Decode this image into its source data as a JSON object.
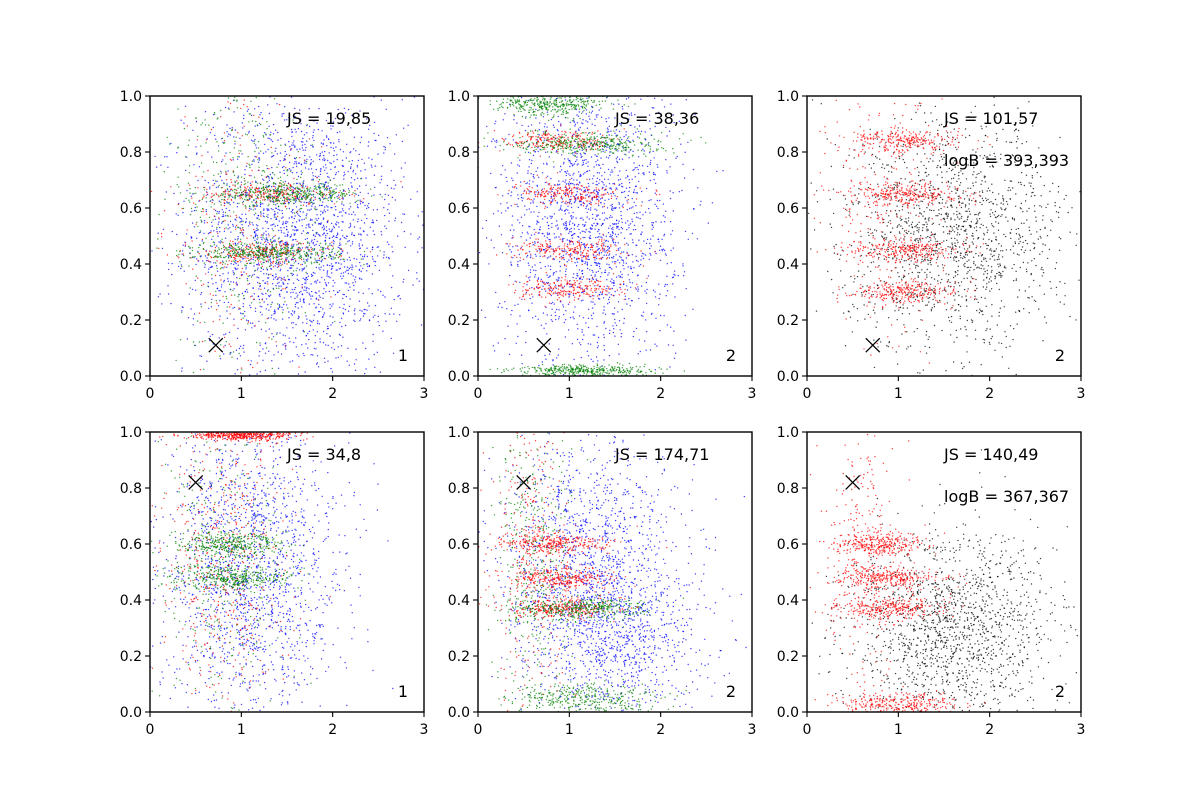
{
  "figure": {
    "layout": "2x3 grid of scatter panels",
    "colors": {
      "blue": "#0000ff",
      "green": "#008000",
      "red": "#ff0000",
      "black": "#000000"
    }
  },
  "chart_data": [
    {
      "type": "scatter",
      "xlim": [
        0,
        3
      ],
      "ylim": [
        0,
        1
      ],
      "xticks": [
        "0",
        "1",
        "2",
        "3"
      ],
      "yticks": [
        "0.0",
        "0.2",
        "0.4",
        "0.6",
        "0.8",
        "1.0"
      ],
      "annotations": [
        "JS = 19,85"
      ],
      "corner_label": "1",
      "marker": {
        "x": 0.72,
        "y": 0.11
      },
      "series": [
        {
          "name": "blue",
          "color": "#0000ff",
          "count": 2200,
          "x_spread": [
            0.1,
            3.0
          ],
          "clusters": [
            {
              "y": 0.5,
              "x_center": 1.6,
              "x_sd": 0.6,
              "y_sd": 0.25
            }
          ]
        },
        {
          "name": "red",
          "color": "#ff0000",
          "count": 700,
          "clusters": [
            {
              "y": 0.65,
              "x_center": 1.3,
              "x_sd": 0.4,
              "y_sd": 0.02
            },
            {
              "y": 0.44,
              "x_center": 1.2,
              "x_sd": 0.4,
              "y_sd": 0.02
            },
            {
              "y": 0.5,
              "x_center": 1.0,
              "x_sd": 0.4,
              "y_sd": 0.3
            }
          ]
        },
        {
          "name": "green",
          "color": "#008000",
          "count": 1200,
          "clusters": [
            {
              "y": 0.65,
              "x_center": 1.5,
              "x_sd": 0.4,
              "y_sd": 0.02
            },
            {
              "y": 0.44,
              "x_center": 1.3,
              "x_sd": 0.4,
              "y_sd": 0.02
            },
            {
              "y": 0.6,
              "x_center": 1.0,
              "x_sd": 0.4,
              "y_sd": 0.3
            }
          ]
        }
      ]
    },
    {
      "type": "scatter",
      "xlim": [
        0,
        3
      ],
      "ylim": [
        0,
        1
      ],
      "xticks": [
        "0",
        "1",
        "2",
        "3"
      ],
      "yticks": [
        "0.0",
        "0.2",
        "0.4",
        "0.6",
        "0.8",
        "1.0"
      ],
      "annotations": [
        "JS = 38,36"
      ],
      "corner_label": "2",
      "marker": {
        "x": 0.72,
        "y": 0.11
      },
      "series": [
        {
          "name": "blue",
          "color": "#0000ff",
          "count": 1800,
          "clusters": [
            {
              "y": 0.55,
              "x_center": 1.2,
              "x_sd": 0.5,
              "y_sd": 0.25
            }
          ]
        },
        {
          "name": "red",
          "color": "#ff0000",
          "count": 900,
          "clusters": [
            {
              "y": 0.84,
              "x_center": 0.9,
              "x_sd": 0.3,
              "y_sd": 0.02
            },
            {
              "y": 0.65,
              "x_center": 1.0,
              "x_sd": 0.3,
              "y_sd": 0.02
            },
            {
              "y": 0.45,
              "x_center": 1.0,
              "x_sd": 0.3,
              "y_sd": 0.02
            },
            {
              "y": 0.31,
              "x_center": 1.0,
              "x_sd": 0.3,
              "y_sd": 0.02
            }
          ]
        },
        {
          "name": "green",
          "color": "#008000",
          "count": 1100,
          "clusters": [
            {
              "y": 0.83,
              "x_center": 1.2,
              "x_sd": 0.4,
              "y_sd": 0.02
            },
            {
              "y": 0.02,
              "x_center": 1.2,
              "x_sd": 0.4,
              "y_sd": 0.01
            },
            {
              "y": 0.97,
              "x_center": 0.8,
              "x_sd": 0.3,
              "y_sd": 0.02
            }
          ]
        }
      ]
    },
    {
      "type": "scatter",
      "xlim": [
        0,
        3
      ],
      "ylim": [
        0,
        1
      ],
      "xticks": [
        "0",
        "1",
        "2",
        "3"
      ],
      "yticks": [
        "0.0",
        "0.2",
        "0.4",
        "0.6",
        "0.8",
        "1.0"
      ],
      "annotations": [
        "JS = 101,57",
        "logB = 393,393"
      ],
      "corner_label": "2",
      "marker": {
        "x": 0.72,
        "y": 0.11
      },
      "series": [
        {
          "name": "black",
          "color": "#000000",
          "count": 1500,
          "clusters": [
            {
              "y": 0.5,
              "x_center": 1.6,
              "x_sd": 0.6,
              "y_sd": 0.2
            }
          ]
        },
        {
          "name": "red",
          "color": "#ff0000",
          "count": 1300,
          "clusters": [
            {
              "y": 0.84,
              "x_center": 1.1,
              "x_sd": 0.3,
              "y_sd": 0.02
            },
            {
              "y": 0.65,
              "x_center": 1.1,
              "x_sd": 0.3,
              "y_sd": 0.02
            },
            {
              "y": 0.45,
              "x_center": 1.1,
              "x_sd": 0.3,
              "y_sd": 0.02
            },
            {
              "y": 0.3,
              "x_center": 1.1,
              "x_sd": 0.3,
              "y_sd": 0.02
            },
            {
              "y": 0.6,
              "x_center": 0.8,
              "x_sd": 0.3,
              "y_sd": 0.25
            }
          ]
        }
      ]
    },
    {
      "type": "scatter",
      "xlim": [
        0,
        3
      ],
      "ylim": [
        0,
        1
      ],
      "xticks": [
        "0",
        "1",
        "2",
        "3"
      ],
      "yticks": [
        "0.0",
        "0.2",
        "0.4",
        "0.6",
        "0.8",
        "1.0"
      ],
      "annotations": [
        "JS = 34,8"
      ],
      "corner_label": "1",
      "marker": {
        "x": 0.5,
        "y": 0.82
      },
      "series": [
        {
          "name": "blue",
          "color": "#0000ff",
          "count": 1700,
          "clusters": [
            {
              "y": 0.5,
              "x_center": 1.1,
              "x_sd": 0.5,
              "y_sd": 0.28
            }
          ]
        },
        {
          "name": "red",
          "color": "#ff0000",
          "count": 1000,
          "clusters": [
            {
              "y": 0.5,
              "x_center": 0.8,
              "x_sd": 0.35,
              "y_sd": 0.28
            },
            {
              "y": 0.99,
              "x_center": 1.0,
              "x_sd": 0.3,
              "y_sd": 0.01
            }
          ]
        },
        {
          "name": "green",
          "color": "#008000",
          "count": 1000,
          "clusters": [
            {
              "y": 0.5,
              "x_center": 0.8,
              "x_sd": 0.35,
              "y_sd": 0.28
            },
            {
              "y": 0.6,
              "x_center": 0.9,
              "x_sd": 0.3,
              "y_sd": 0.02
            },
            {
              "y": 0.48,
              "x_center": 0.9,
              "x_sd": 0.3,
              "y_sd": 0.02
            }
          ]
        }
      ]
    },
    {
      "type": "scatter",
      "xlim": [
        0,
        3
      ],
      "ylim": [
        0,
        1
      ],
      "xticks": [
        "0",
        "1",
        "2",
        "3"
      ],
      "yticks": [
        "0.0",
        "0.2",
        "0.4",
        "0.6",
        "0.8",
        "1.0"
      ],
      "annotations": [
        "JS = 174,71"
      ],
      "corner_label": "2",
      "marker": {
        "x": 0.5,
        "y": 0.82
      },
      "series": [
        {
          "name": "blue",
          "color": "#0000ff",
          "count": 2000,
          "clusters": [
            {
              "y": 0.28,
              "x_center": 1.5,
              "x_sd": 0.5,
              "y_sd": 0.15
            },
            {
              "y": 0.6,
              "x_center": 1.2,
              "x_sd": 0.5,
              "y_sd": 0.2
            }
          ]
        },
        {
          "name": "red",
          "color": "#ff0000",
          "count": 1200,
          "clusters": [
            {
              "y": 0.6,
              "x_center": 0.8,
              "x_sd": 0.3,
              "y_sd": 0.02
            },
            {
              "y": 0.48,
              "x_center": 0.9,
              "x_sd": 0.3,
              "y_sd": 0.02
            },
            {
              "y": 0.37,
              "x_center": 0.9,
              "x_sd": 0.3,
              "y_sd": 0.02
            },
            {
              "y": 0.6,
              "x_center": 0.6,
              "x_sd": 0.2,
              "y_sd": 0.3
            }
          ]
        },
        {
          "name": "green",
          "color": "#008000",
          "count": 1100,
          "clusters": [
            {
              "y": 0.04,
              "x_center": 1.2,
              "x_sd": 0.4,
              "y_sd": 0.03
            },
            {
              "y": 0.37,
              "x_center": 1.1,
              "x_sd": 0.35,
              "y_sd": 0.02
            },
            {
              "y": 0.5,
              "x_center": 0.6,
              "x_sd": 0.2,
              "y_sd": 0.28
            }
          ]
        }
      ]
    },
    {
      "type": "scatter",
      "xlim": [
        0,
        3
      ],
      "ylim": [
        0,
        1
      ],
      "xticks": [
        "0",
        "1",
        "2",
        "3"
      ],
      "yticks": [
        "0.0",
        "0.2",
        "0.4",
        "0.6",
        "0.8",
        "1.0"
      ],
      "annotations": [
        "JS = 140,49",
        "logB = 367,367"
      ],
      "corner_label": "2",
      "marker": {
        "x": 0.5,
        "y": 0.82
      },
      "series": [
        {
          "name": "black",
          "color": "#000000",
          "count": 1500,
          "clusters": [
            {
              "y": 0.3,
              "x_center": 1.6,
              "x_sd": 0.55,
              "y_sd": 0.17
            }
          ]
        },
        {
          "name": "red",
          "color": "#ff0000",
          "count": 1500,
          "clusters": [
            {
              "y": 0.6,
              "x_center": 0.8,
              "x_sd": 0.25,
              "y_sd": 0.02
            },
            {
              "y": 0.48,
              "x_center": 0.9,
              "x_sd": 0.3,
              "y_sd": 0.02
            },
            {
              "y": 0.37,
              "x_center": 0.9,
              "x_sd": 0.3,
              "y_sd": 0.02
            },
            {
              "y": 0.03,
              "x_center": 1.0,
              "x_sd": 0.3,
              "y_sd": 0.02
            },
            {
              "y": 0.55,
              "x_center": 0.6,
              "x_sd": 0.2,
              "y_sd": 0.3
            }
          ]
        }
      ]
    }
  ]
}
